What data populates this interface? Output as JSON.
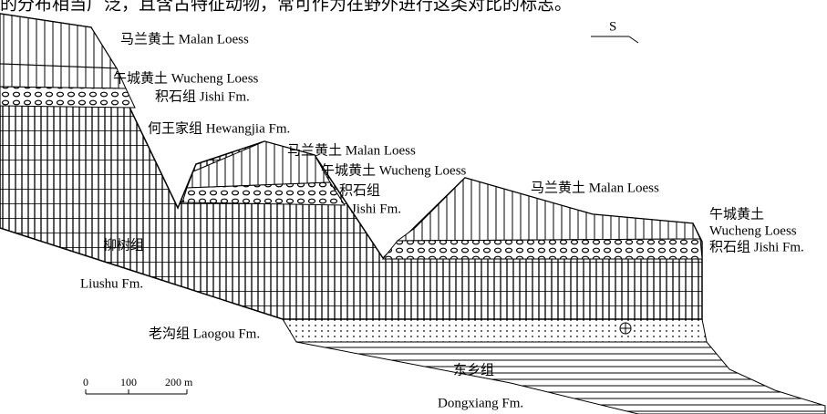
{
  "caption": "的分布相当广泛，且含古特征动物，常可作为在野外进行这类对比的标志。",
  "direction": "S",
  "labels": [
    "马兰黄土 Malan Loess",
    "午城黄土 Wucheng Loess",
    "积石组 Jishi Fm.",
    "何王家组 Hewangjia Fm.",
    "马兰黄土 Malan Loess",
    "午城黄土 Wucheng Loess",
    "积石组",
    "Jishi Fm.",
    "马兰黄土 Malan Loess",
    "午城黄土",
    "Wucheng Loess",
    "积石组 Jishi Fm.",
    "柳树组",
    "Liushu Fm.",
    "老沟组 Laogou Fm.",
    "东乡组",
    "Dongxiang Fm."
  ],
  "scale_bar": [
    "0",
    "100",
    "200 m"
  ]
}
